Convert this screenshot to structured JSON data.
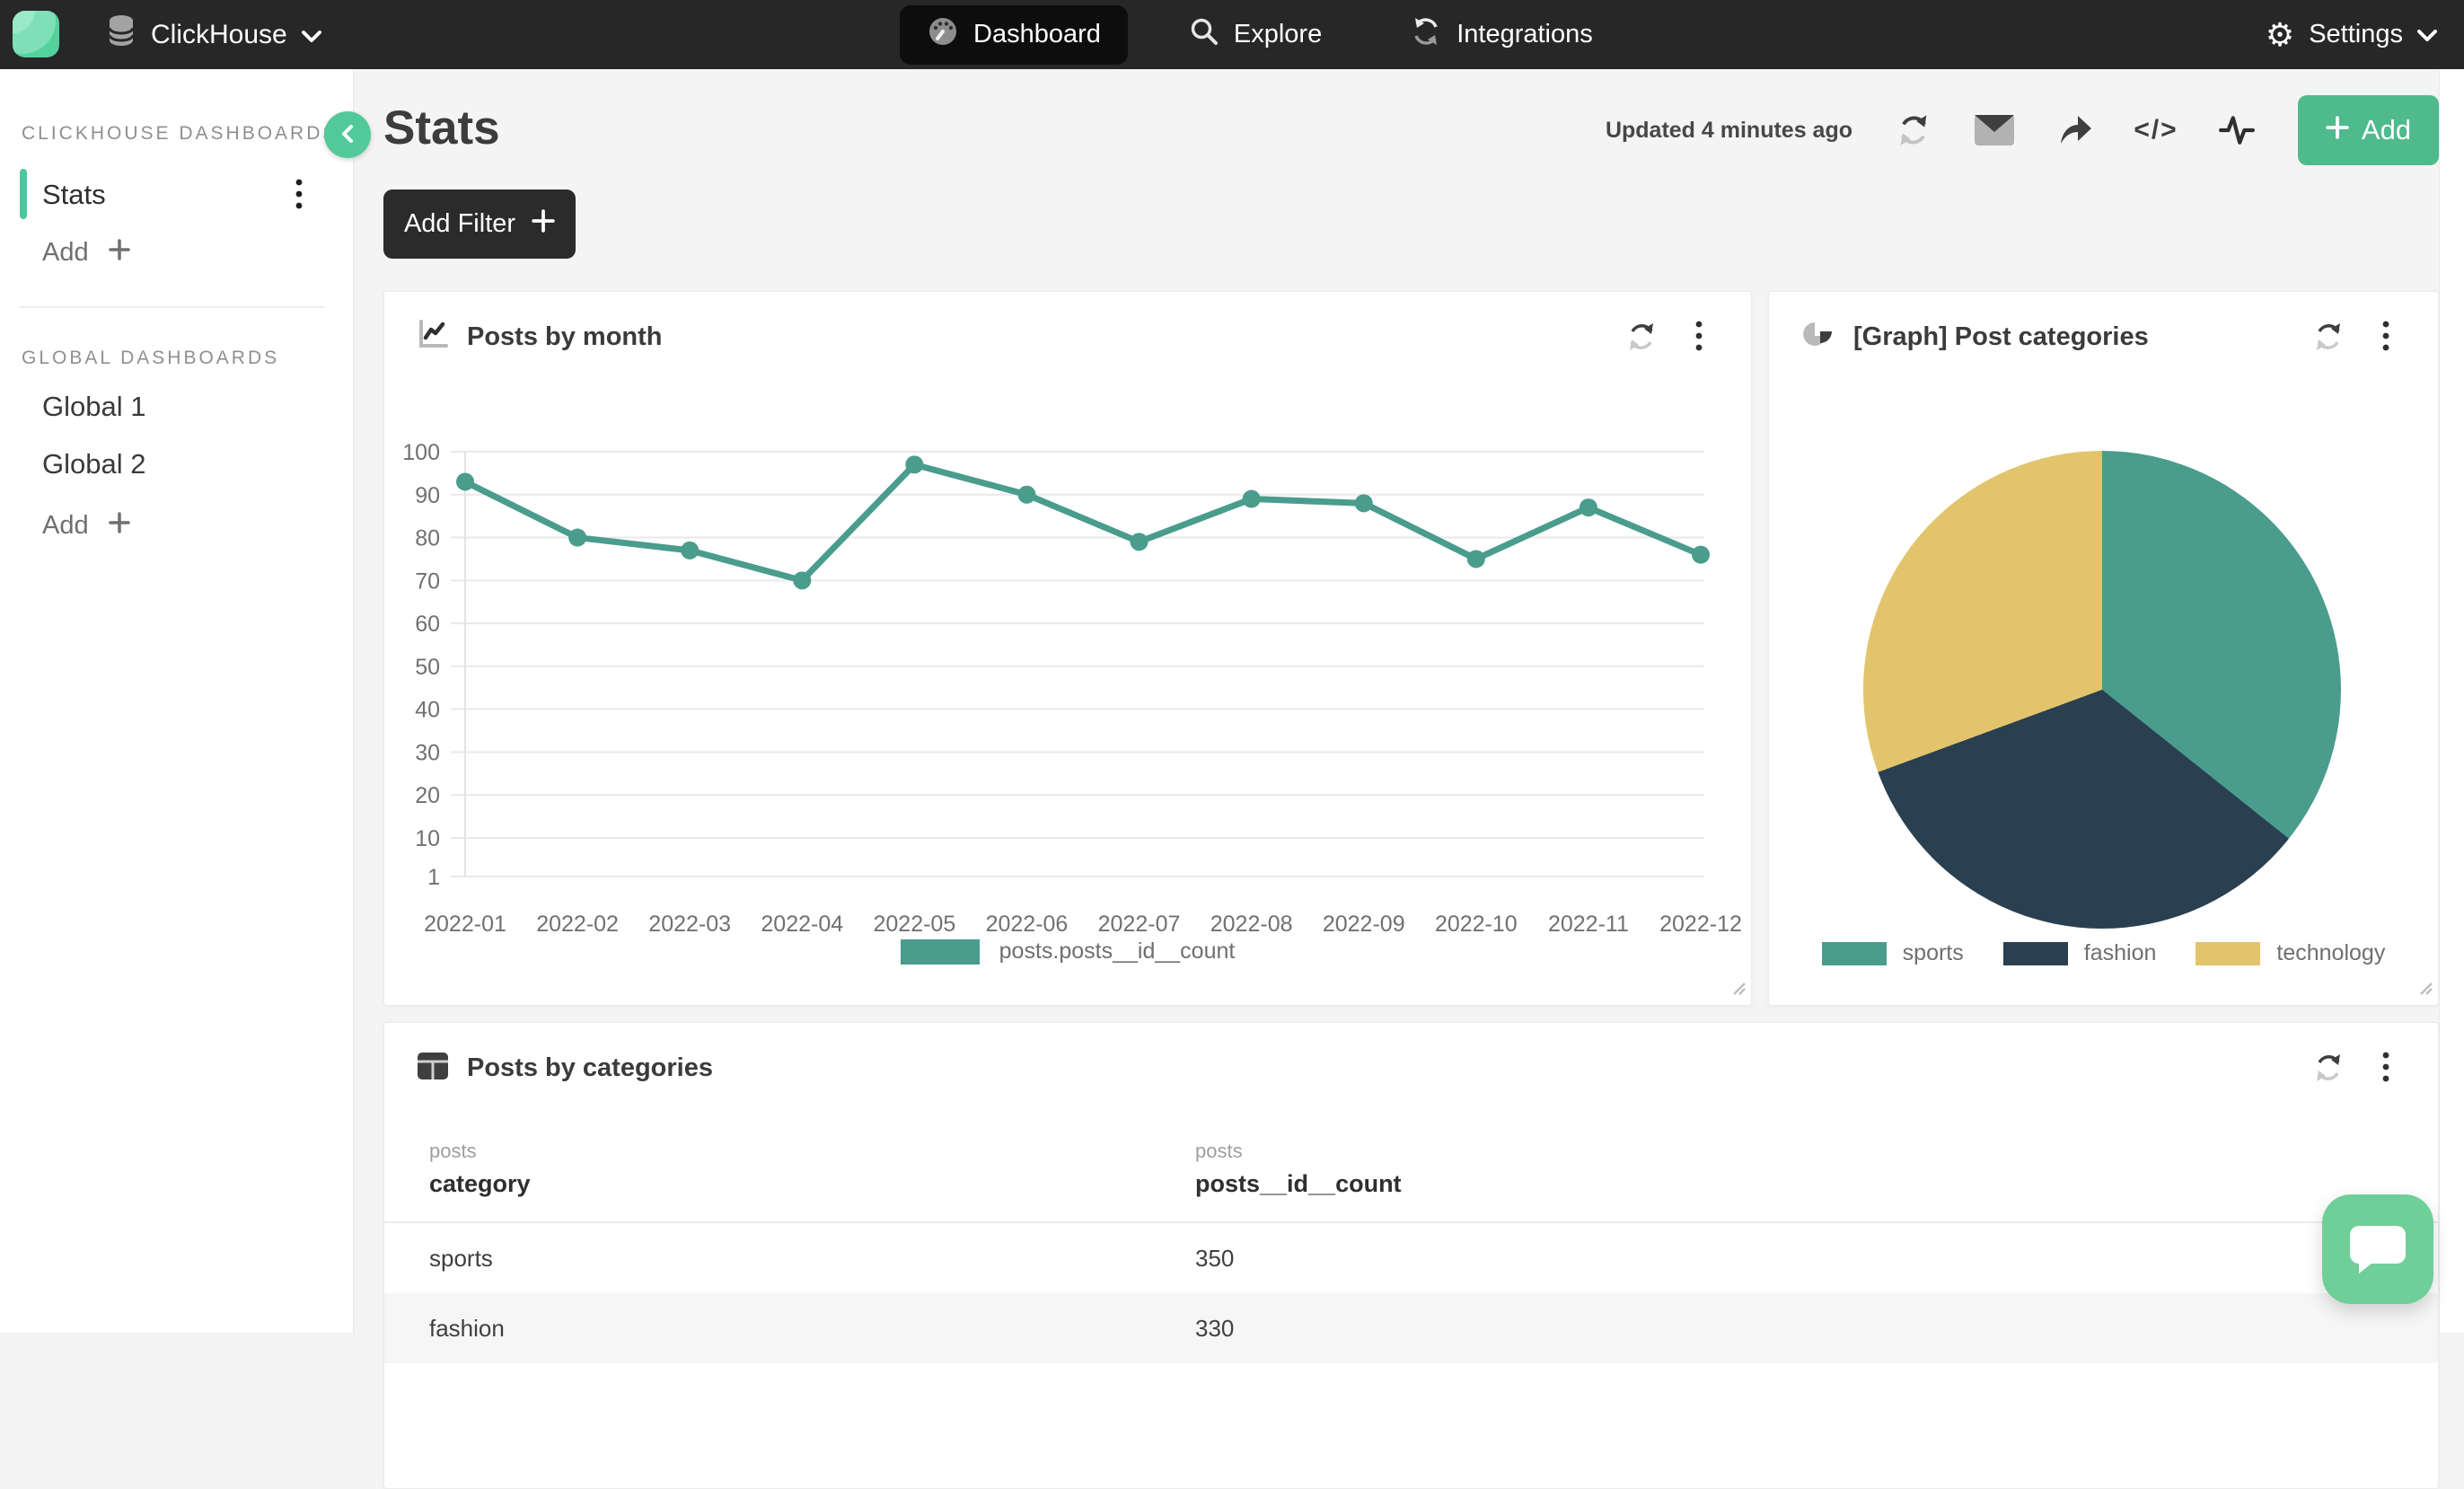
{
  "nav": {
    "app": "ClickHouse",
    "tabs": [
      {
        "label": "Dashboard",
        "active": true
      },
      {
        "label": "Explore",
        "active": false
      },
      {
        "label": "Integrations",
        "active": false
      }
    ],
    "settings": "Settings"
  },
  "sidebar": {
    "section1": "CLICKHOUSE DASHBOARDS",
    "stats_item": "Stats",
    "add1": "Add",
    "section2": "GLOBAL DASHBOARDS",
    "global1": "Global 1",
    "global2": "Global 2",
    "add2": "Add"
  },
  "header": {
    "title": "Stats",
    "updated": "Updated 4 minutes ago",
    "add_label": "Add",
    "add_filter_label": "Add Filter"
  },
  "cards": {
    "line": {
      "title": "Posts by month",
      "legend": "posts.posts__id__count"
    },
    "pie": {
      "title": "[Graph] Post categories",
      "legend": [
        "sports",
        "fashion",
        "technology"
      ]
    },
    "table": {
      "title": "Posts by categories",
      "col_groups": [
        "posts",
        "posts"
      ],
      "columns": [
        "category",
        "posts__id__count"
      ],
      "rows": [
        [
          "sports",
          "350"
        ],
        [
          "fashion",
          "330"
        ]
      ]
    }
  },
  "colors": {
    "brand_green": "#55d19e",
    "collapse_green": "#52c999",
    "add_button_green": "#4fba8c",
    "chat_green": "#70cf98",
    "active_item_teal": "#4fc79e",
    "nav_bg": "#272727",
    "chart_teal": "#4a9c8d",
    "chart_navy": "#2a4050",
    "chart_yellow": "#e2c46d"
  },
  "chart_data": [
    {
      "type": "line",
      "title": "Posts by month",
      "x": [
        "2022-01",
        "2022-02",
        "2022-03",
        "2022-04",
        "2022-05",
        "2022-06",
        "2022-07",
        "2022-08",
        "2022-09",
        "2022-10",
        "2022-11",
        "2022-12"
      ],
      "series": [
        {
          "name": "posts.posts__id__count",
          "values": [
            93,
            80,
            77,
            70,
            97,
            90,
            79,
            89,
            88,
            75,
            87,
            76
          ]
        }
      ],
      "ylim": [
        1,
        100
      ],
      "yticks": [
        1,
        10,
        20,
        30,
        40,
        50,
        60,
        70,
        80,
        90,
        100
      ],
      "grid": true,
      "legend_position": "bottom",
      "color": "#4a9c8d"
    },
    {
      "type": "pie",
      "title": "[Graph] Post categories",
      "labels": [
        "sports",
        "fashion",
        "technology"
      ],
      "values": [
        350,
        330,
        300
      ],
      "colors": [
        "#4a9c8d",
        "#2a4050",
        "#e2c46d"
      ],
      "legend_position": "bottom",
      "start_angle_deg": 0
    },
    {
      "type": "table",
      "title": "Posts by categories",
      "columns": [
        "category",
        "posts__id__count"
      ],
      "rows": [
        [
          "sports",
          350
        ],
        [
          "fashion",
          330
        ]
      ]
    }
  ]
}
